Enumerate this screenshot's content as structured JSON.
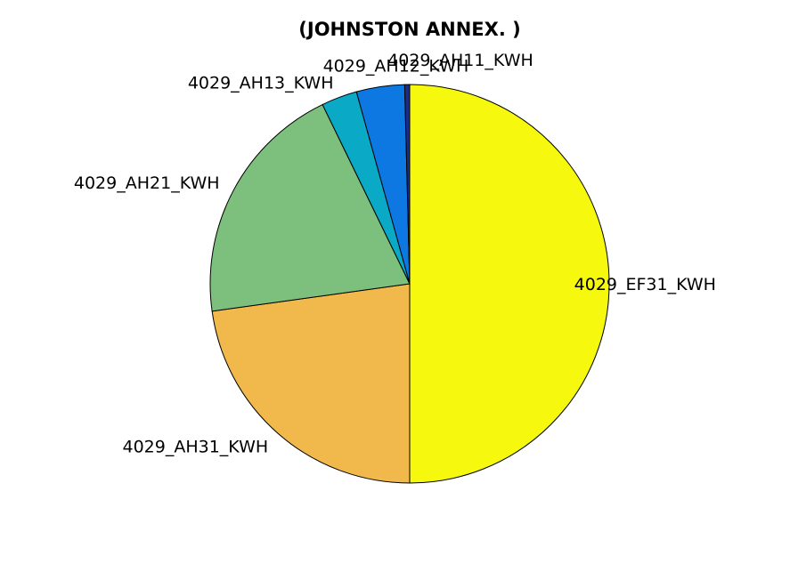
{
  "chart_data": {
    "type": "pie",
    "title": "(JOHNSTON ANNEX. )",
    "slices": [
      {
        "label": "4029_EF31_KWH",
        "value": 50.0,
        "color": "#f6f90e"
      },
      {
        "label": "4029_AH31_KWH",
        "value": 22.8,
        "color": "#f1b94b"
      },
      {
        "label": "4029_AH21_KWH",
        "value": 20.0,
        "color": "#7dc07e"
      },
      {
        "label": "4029_AH13_KWH",
        "value": 2.9,
        "color": "#0aa9c6"
      },
      {
        "label": "4029_AH12_KWH",
        "value": 3.9,
        "color": "#0e78e2"
      },
      {
        "label": "4029_AH11_KWH",
        "value": 0.4,
        "color": "#1a2d8a"
      }
    ]
  }
}
